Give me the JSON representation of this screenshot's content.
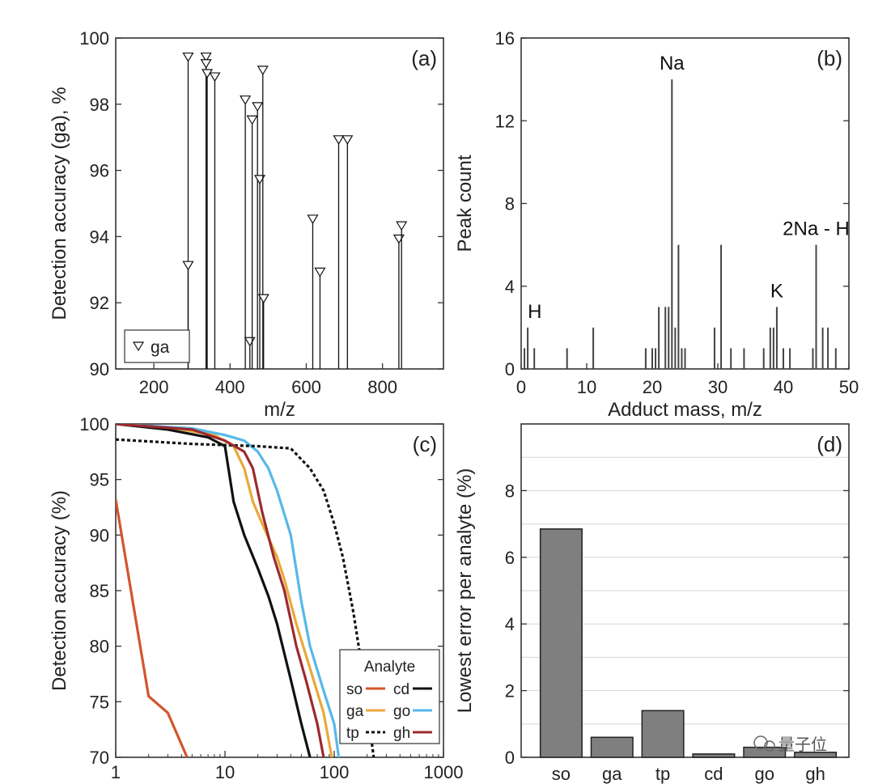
{
  "watermark": "量子位",
  "chart_data": [
    {
      "id": "a",
      "type": "scatter",
      "panel_label": "(a)",
      "xlabel": "m/z",
      "ylabel": "Detection accuracy (ga), %",
      "xlim": [
        100,
        960
      ],
      "ylim": [
        90,
        100
      ],
      "xticks": [
        200,
        400,
        600,
        800
      ],
      "yticks": [
        90,
        92,
        94,
        96,
        98,
        100
      ],
      "legend": {
        "label": "ga",
        "placement": "bottom-left"
      },
      "series": [
        {
          "name": "ga",
          "stems": [
            {
              "x": 290,
              "y": 99.4
            },
            {
              "x": 290,
              "y": 93.1
            },
            {
              "x": 337,
              "y": 99.4
            },
            {
              "x": 337,
              "y": 99.2
            },
            {
              "x": 340,
              "y": 98.9
            },
            {
              "x": 360,
              "y": 98.8
            },
            {
              "x": 440,
              "y": 98.1
            },
            {
              "x": 452,
              "y": 90.8
            },
            {
              "x": 458,
              "y": 97.5
            },
            {
              "x": 472,
              "y": 97.9
            },
            {
              "x": 478,
              "y": 95.7
            },
            {
              "x": 486,
              "y": 99.0
            },
            {
              "x": 488,
              "y": 92.1
            },
            {
              "x": 617,
              "y": 94.5
            },
            {
              "x": 636,
              "y": 92.9
            },
            {
              "x": 685,
              "y": 96.9
            },
            {
              "x": 708,
              "y": 96.9
            },
            {
              "x": 843,
              "y": 93.9
            },
            {
              "x": 850,
              "y": 94.3
            }
          ]
        }
      ]
    },
    {
      "id": "b",
      "type": "bar",
      "panel_label": "(b)",
      "xlabel": "Adduct mass, m/z",
      "ylabel": "Peak count",
      "xlim": [
        0,
        50
      ],
      "ylim": [
        0,
        16
      ],
      "xticks": [
        0,
        10,
        20,
        30,
        40,
        50
      ],
      "yticks": [
        0,
        4,
        8,
        12,
        16
      ],
      "annotations": [
        {
          "text": "Na",
          "x": 23,
          "y": 14
        },
        {
          "text": "H",
          "x": 1,
          "y": 2
        },
        {
          "text": "K",
          "x": 39,
          "y": 3
        },
        {
          "text": "2Na - H",
          "x": 45,
          "y": 6
        }
      ],
      "x": [
        0.5,
        1.0,
        2.0,
        7.0,
        11.0,
        19.0,
        20.0,
        20.5,
        21.0,
        22.0,
        22.5,
        23.0,
        23.5,
        24.0,
        24.5,
        25.0,
        29.5,
        30.5,
        32.0,
        34.0,
        37.0,
        38.0,
        38.5,
        39.0,
        40.0,
        41.0,
        44.5,
        45.0,
        46.0,
        46.8,
        48.0
      ],
      "values": [
        1,
        2,
        1,
        1,
        2,
        1,
        1,
        1,
        3,
        3,
        3,
        14,
        2,
        6,
        1,
        1,
        2,
        6,
        1,
        1,
        1,
        2,
        2,
        3,
        1,
        1,
        1,
        6,
        2,
        2,
        1
      ]
    },
    {
      "id": "c",
      "type": "line",
      "panel_label": "(c)",
      "xlabel": "",
      "ylabel": "Detection accuracy (%)",
      "xscale": "log",
      "xlim": [
        1,
        1000
      ],
      "ylim": [
        70,
        100
      ],
      "xticks": [
        1,
        10,
        100,
        1000
      ],
      "yticks": [
        70,
        75,
        80,
        85,
        90,
        95,
        100
      ],
      "legend": {
        "title": "Analyte",
        "placement": "bottom-right",
        "entries": [
          "so",
          "cd",
          "ga",
          "go",
          "tp",
          "gh"
        ]
      },
      "series": [
        {
          "name": "so",
          "color": "#d2552d",
          "style": "solid",
          "x": [
            1,
            2,
            3,
            4.5
          ],
          "y": [
            93.2,
            75.5,
            74.0,
            70.0
          ]
        },
        {
          "name": "cd",
          "color": "#111111",
          "style": "solid",
          "x": [
            1,
            3,
            7,
            10,
            12,
            15,
            20,
            25,
            30,
            40,
            50,
            60
          ],
          "y": [
            100,
            99.5,
            98.8,
            98.0,
            93.0,
            90.0,
            87.0,
            84.5,
            82.0,
            77.0,
            73.0,
            70.0
          ]
        },
        {
          "name": "ga",
          "color": "#e8a93a",
          "style": "solid",
          "x": [
            1,
            3,
            8,
            12,
            15,
            18,
            22,
            30,
            35,
            45,
            60,
            80,
            95
          ],
          "y": [
            100,
            99.7,
            99.0,
            98.0,
            96.0,
            93.0,
            91.0,
            88.0,
            86.0,
            82.0,
            78.0,
            74.0,
            70.0
          ]
        },
        {
          "name": "go",
          "color": "#56b9e8",
          "style": "solid",
          "x": [
            1,
            5,
            10,
            15,
            20,
            25,
            30,
            40,
            50,
            60,
            80,
            100,
            110
          ],
          "y": [
            100,
            99.6,
            99.0,
            98.5,
            97.5,
            96.0,
            94.0,
            90.0,
            84.0,
            80.0,
            76.0,
            73.0,
            70.0
          ]
        },
        {
          "name": "tp",
          "color": "#111111",
          "style": "dashed",
          "x": [
            1,
            5,
            20,
            40,
            60,
            80,
            100,
            120,
            150,
            180,
            230
          ],
          "y": [
            98.6,
            98.2,
            98.0,
            97.8,
            96.0,
            94.0,
            91.0,
            88.0,
            83.0,
            78.0,
            70.0
          ]
        },
        {
          "name": "gh",
          "color": "#9c2a2e",
          "style": "solid",
          "x": [
            1,
            5,
            10,
            15,
            18,
            22,
            28,
            35,
            45,
            55,
            70,
            80
          ],
          "y": [
            100,
            99.5,
            98.5,
            97.5,
            96.0,
            92.0,
            88.0,
            85.0,
            80.0,
            77.0,
            73.0,
            70.0
          ]
        }
      ]
    },
    {
      "id": "d",
      "type": "bar",
      "panel_label": "(d)",
      "xlabel": "",
      "ylabel": "Lowest error per analyte (%)",
      "ylim": [
        0,
        10
      ],
      "yticks": [
        0,
        2,
        4,
        6,
        8
      ],
      "grid": true,
      "categories": [
        "so",
        "ga",
        "tp",
        "cd",
        "go",
        "gh"
      ],
      "values": [
        6.85,
        0.6,
        1.4,
        0.1,
        0.3,
        0.15
      ],
      "color": "#7f7f7f"
    }
  ]
}
